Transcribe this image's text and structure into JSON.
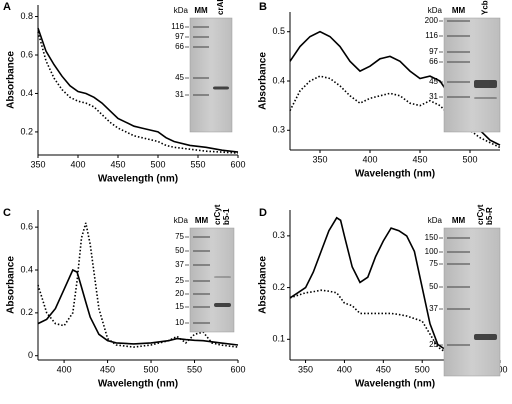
{
  "chart_data": [
    {
      "type": "line",
      "panel": "A",
      "xlabel": "Wavelength (nm)",
      "ylabel": "Absorbance",
      "xlim": [
        350,
        600
      ],
      "xticks": [
        350,
        400,
        450,
        500,
        550,
        600
      ],
      "ylim": [
        0.08,
        0.86
      ],
      "yticks": [
        0.2,
        0.4,
        0.6,
        0.8
      ],
      "x": [
        350,
        360,
        370,
        380,
        390,
        400,
        410,
        420,
        430,
        440,
        450,
        460,
        470,
        480,
        490,
        500,
        510,
        520,
        540,
        560,
        580,
        600
      ],
      "series": [
        {
          "style": "solid",
          "color": "#000000",
          "values": [
            0.74,
            0.62,
            0.55,
            0.49,
            0.44,
            0.41,
            0.4,
            0.38,
            0.35,
            0.31,
            0.27,
            0.25,
            0.23,
            0.22,
            0.21,
            0.2,
            0.17,
            0.15,
            0.13,
            0.12,
            0.105,
            0.095
          ]
        },
        {
          "style": "dotted",
          "color": "#000000",
          "values": [
            0.72,
            0.57,
            0.48,
            0.42,
            0.38,
            0.36,
            0.35,
            0.33,
            0.29,
            0.25,
            0.22,
            0.2,
            0.18,
            0.17,
            0.16,
            0.15,
            0.13,
            0.12,
            0.11,
            0.1,
            0.095,
            0.09
          ]
        }
      ],
      "inset": {
        "unit": "kDa",
        "ladder": "MM",
        "sample": [
          "crARC"
        ],
        "markers": [
          116,
          97,
          66,
          45,
          31
        ]
      }
    },
    {
      "type": "line",
      "panel": "B",
      "xlabel": "Wavelength (nm)",
      "ylabel": "Absorbance",
      "xlim": [
        320,
        530
      ],
      "xticks": [
        350,
        400,
        450,
        500
      ],
      "ylim": [
        0.26,
        0.54
      ],
      "yticks": [
        0.3,
        0.4,
        0.5
      ],
      "x": [
        320,
        330,
        340,
        350,
        360,
        370,
        380,
        390,
        400,
        410,
        420,
        430,
        440,
        450,
        460,
        470,
        480,
        490,
        500,
        510,
        520,
        530
      ],
      "series": [
        {
          "style": "solid",
          "color": "#000000",
          "values": [
            0.44,
            0.47,
            0.49,
            0.5,
            0.49,
            0.47,
            0.44,
            0.42,
            0.43,
            0.445,
            0.45,
            0.44,
            0.42,
            0.405,
            0.41,
            0.4,
            0.37,
            0.34,
            0.32,
            0.3,
            0.28,
            0.27
          ]
        },
        {
          "style": "dotted",
          "color": "#000000",
          "values": [
            0.34,
            0.38,
            0.4,
            0.41,
            0.405,
            0.39,
            0.37,
            0.355,
            0.365,
            0.37,
            0.375,
            0.37,
            0.355,
            0.35,
            0.36,
            0.35,
            0.33,
            0.315,
            0.3,
            0.285,
            0.275,
            0.265
          ]
        }
      ],
      "inset": {
        "unit": "kDa",
        "ladder": "MM",
        "sample": [
          "YcbX"
        ],
        "markers": [
          200,
          116,
          97,
          66,
          45,
          31
        ]
      }
    },
    {
      "type": "line",
      "panel": "C",
      "xlabel": "Wavelength (nm)",
      "ylabel": "Absorbance",
      "xlim": [
        370,
        600
      ],
      "xticks": [
        400,
        450,
        500,
        550,
        600
      ],
      "ylim": [
        -0.02,
        0.68
      ],
      "yticks": [
        0.0,
        0.2,
        0.4,
        0.6
      ],
      "x": [
        370,
        380,
        390,
        400,
        410,
        415,
        420,
        425,
        430,
        440,
        450,
        460,
        480,
        500,
        520,
        530,
        540,
        550,
        560,
        570,
        580,
        600
      ],
      "series": [
        {
          "style": "solid",
          "color": "#000000",
          "values": [
            0.15,
            0.17,
            0.22,
            0.31,
            0.4,
            0.39,
            0.32,
            0.25,
            0.18,
            0.1,
            0.07,
            0.06,
            0.055,
            0.06,
            0.07,
            0.08,
            0.075,
            0.072,
            0.07,
            0.065,
            0.06,
            0.05
          ]
        },
        {
          "style": "dotted",
          "color": "#000000",
          "values": [
            0.33,
            0.2,
            0.15,
            0.14,
            0.2,
            0.35,
            0.55,
            0.62,
            0.52,
            0.22,
            0.08,
            0.05,
            0.04,
            0.05,
            0.07,
            0.09,
            0.06,
            0.1,
            0.11,
            0.06,
            0.05,
            0.04
          ]
        }
      ],
      "inset": {
        "unit": "kDa",
        "ladder": "MM",
        "sample": [
          "crCyt",
          "b5-1"
        ],
        "markers": [
          75,
          50,
          37,
          25,
          20,
          15,
          10
        ]
      }
    },
    {
      "type": "line",
      "panel": "D",
      "xlabel": "Wavelength (nm)",
      "ylabel": "Absorbance",
      "xlim": [
        330,
        600
      ],
      "xticks": [
        350,
        400,
        450,
        500,
        550,
        600
      ],
      "ylim": [
        0.06,
        0.35
      ],
      "yticks": [
        0.1,
        0.2,
        0.3
      ],
      "x": [
        330,
        340,
        350,
        360,
        370,
        380,
        390,
        395,
        400,
        410,
        420,
        430,
        440,
        450,
        460,
        470,
        480,
        490,
        500,
        510,
        520,
        530,
        550,
        600
      ],
      "series": [
        {
          "style": "solid",
          "color": "#000000",
          "values": [
            0.18,
            0.19,
            0.2,
            0.23,
            0.27,
            0.31,
            0.335,
            0.33,
            0.3,
            0.24,
            0.21,
            0.22,
            0.26,
            0.29,
            0.315,
            0.31,
            0.3,
            0.27,
            0.2,
            0.13,
            0.09,
            0.08,
            0.08,
            0.075
          ]
        },
        {
          "style": "dotted",
          "color": "#000000",
          "values": [
            0.18,
            0.185,
            0.19,
            0.192,
            0.195,
            0.193,
            0.19,
            0.18,
            0.17,
            0.165,
            0.15,
            0.15,
            0.15,
            0.15,
            0.15,
            0.148,
            0.145,
            0.14,
            0.135,
            0.11,
            0.085,
            0.075,
            0.07,
            0.065
          ]
        }
      ],
      "inset": {
        "unit": "kDa",
        "ladder": "MM",
        "sample": [
          "crCyt",
          "b5-R"
        ],
        "markers": [
          150,
          100,
          75,
          50,
          37,
          25
        ]
      }
    }
  ]
}
